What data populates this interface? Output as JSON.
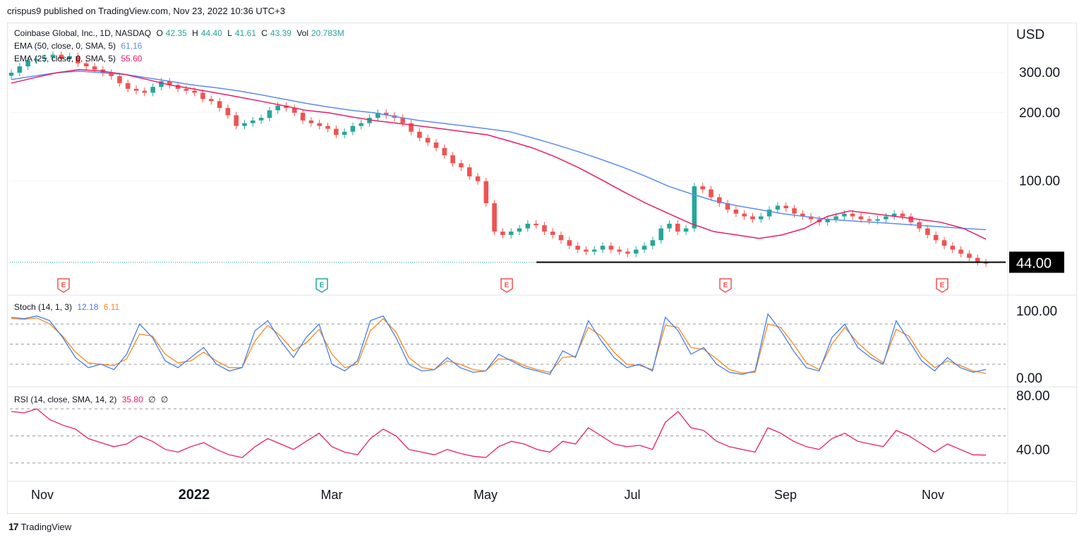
{
  "header": {
    "publisher": "crispus9 published on TradingView.com, Nov 23, 2022 10:36 UTC+3"
  },
  "footer": {
    "brand": "TradingView",
    "logo_glyph": "17"
  },
  "legend": {
    "symbol": "Coinbase Global, Inc., 1D, NASDAQ",
    "o_label": "O",
    "o": "42.35",
    "h_label": "H",
    "h": "44.40",
    "l_label": "L",
    "l": "41.61",
    "c_label": "C",
    "c": "43.39",
    "vol_label": "Vol",
    "vol": "20.783M",
    "ema50_label": "EMA (50, close, 0, SMA, 5)",
    "ema50_value": "61.16",
    "ema25_label": "EMA (25, close, 0, SMA, 5)",
    "ema25_value": "55.60",
    "stoch_label": "Stoch (14, 1, 3)",
    "stoch_k": "12.18",
    "stoch_d": "6.11",
    "rsi_label": "RSI (14, close, SMA, 14, 2)",
    "rsi_value": "35.80",
    "rsi_extra1": "∅",
    "rsi_extra2": "∅"
  },
  "colors": {
    "up": "#26a69a",
    "down": "#ef5350",
    "ema50": "#5b8def",
    "ema25": "#e91e63",
    "stoch_k": "#4a7ee8",
    "stoch_d": "#f48a23",
    "rsi": "#e91e63",
    "grid": "#f0f3fa",
    "axis_text": "#131722",
    "support": "#000000"
  },
  "chart_data": {
    "type": "candlestick",
    "currency": "USD",
    "x_ticks": [
      "Nov",
      "2022",
      "Mar",
      "May",
      "Jul",
      "Sep",
      "Nov"
    ],
    "price_axis": {
      "ticks": [
        "300.00",
        "200.00",
        "100.00"
      ],
      "scale": "log",
      "current_label": "44.00"
    },
    "support_level": 44.0,
    "earnings_markers": [
      "E",
      "E",
      "E",
      "E",
      "E"
    ],
    "price_close": [
      300,
      320,
      340,
      345,
      350,
      360,
      345,
      355,
      330,
      320,
      310,
      300,
      290,
      270,
      255,
      250,
      245,
      260,
      275,
      265,
      255,
      250,
      245,
      230,
      225,
      210,
      195,
      175,
      180,
      185,
      190,
      205,
      215,
      210,
      200,
      185,
      180,
      175,
      170,
      160,
      165,
      175,
      180,
      190,
      200,
      195,
      190,
      180,
      165,
      155,
      148,
      140,
      130,
      120,
      115,
      105,
      100,
      80,
      60,
      58,
      60,
      62,
      65,
      64,
      60,
      58,
      55,
      52,
      50,
      49,
      50,
      52,
      50,
      49,
      48,
      50,
      52,
      55,
      62,
      65,
      60,
      62,
      95,
      92,
      85,
      80,
      75,
      72,
      70,
      68,
      70,
      75,
      78,
      76,
      72,
      70,
      68,
      66,
      68,
      70,
      72,
      70,
      68,
      67,
      68,
      70,
      72,
      70,
      66,
      62,
      58,
      55,
      52,
      50,
      48,
      46,
      44,
      43.39
    ],
    "ema50": [
      280,
      290,
      300,
      305,
      300,
      295,
      285,
      275,
      265,
      258,
      250,
      240,
      230,
      220,
      212,
      205,
      200,
      192,
      185,
      180,
      175,
      170,
      165,
      155,
      145,
      135,
      125,
      115,
      105,
      95,
      88,
      82,
      78,
      75,
      72,
      70,
      68,
      67,
      66,
      65,
      64,
      63,
      62,
      61.16
    ],
    "ema25": [
      270,
      285,
      300,
      310,
      305,
      295,
      280,
      265,
      255,
      245,
      235,
      225,
      215,
      205,
      200,
      192,
      185,
      180,
      175,
      170,
      165,
      160,
      150,
      140,
      128,
      115,
      102,
      90,
      80,
      72,
      65,
      60,
      58,
      56,
      58,
      62,
      70,
      74,
      72,
      70,
      68,
      66,
      62,
      55.6
    ],
    "stoch_k": [
      90,
      88,
      92,
      85,
      60,
      30,
      15,
      20,
      12,
      35,
      80,
      60,
      25,
      15,
      30,
      45,
      20,
      10,
      15,
      70,
      85,
      55,
      30,
      60,
      80,
      20,
      10,
      25,
      85,
      92,
      60,
      20,
      10,
      12,
      30,
      15,
      8,
      10,
      35,
      25,
      15,
      10,
      5,
      40,
      30,
      85,
      55,
      30,
      15,
      20,
      10,
      90,
      70,
      35,
      45,
      20,
      8,
      5,
      10,
      95,
      70,
      40,
      15,
      10,
      60,
      80,
      45,
      30,
      20,
      85,
      55,
      25,
      10,
      30,
      15,
      8,
      12.18
    ],
    "stoch_d": [
      88,
      87,
      89,
      80,
      62,
      38,
      22,
      20,
      18,
      28,
      65,
      62,
      35,
      22,
      25,
      38,
      25,
      15,
      15,
      55,
      78,
      62,
      40,
      52,
      72,
      35,
      15,
      20,
      70,
      88,
      68,
      30,
      15,
      12,
      25,
      20,
      12,
      10,
      28,
      27,
      18,
      12,
      8,
      30,
      32,
      75,
      62,
      38,
      20,
      18,
      12,
      78,
      75,
      45,
      42,
      28,
      12,
      7,
      8,
      80,
      75,
      50,
      22,
      12,
      50,
      75,
      52,
      35,
      22,
      72,
      62,
      32,
      15,
      25,
      18,
      10,
      6.11
    ],
    "rsi_axis": {
      "ticks": [
        "80.00",
        "40.00"
      ]
    },
    "rsi": [
      68,
      67,
      70,
      62,
      58,
      55,
      48,
      45,
      42,
      44,
      50,
      46,
      40,
      38,
      42,
      45,
      40,
      36,
      34,
      42,
      48,
      44,
      40,
      46,
      52,
      42,
      38,
      36,
      48,
      55,
      50,
      40,
      38,
      36,
      40,
      37,
      35,
      34,
      42,
      46,
      44,
      40,
      38,
      46,
      44,
      56,
      50,
      44,
      42,
      43,
      40,
      60,
      68,
      56,
      54,
      46,
      42,
      40,
      38,
      56,
      52,
      46,
      42,
      40,
      48,
      52,
      46,
      44,
      42,
      54,
      50,
      44,
      38,
      44,
      40,
      36,
      35.8
    ],
    "stoch_axis": {
      "ticks": [
        "100.00",
        "0.00"
      ]
    }
  }
}
